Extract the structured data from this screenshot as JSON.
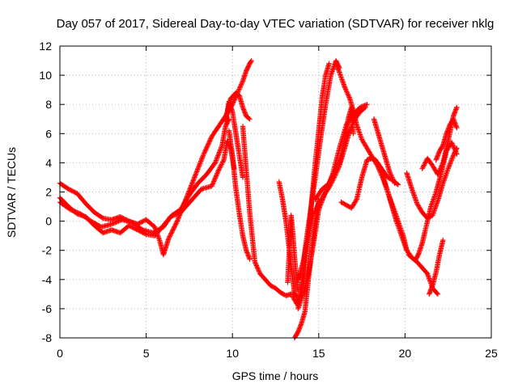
{
  "chart_data": {
    "type": "scatter",
    "title": "Day 057 of 2017, Sidereal Day-to-day VTEC variation (SDTVAR) for receiver nklg",
    "xlabel": "GPS time / hours",
    "ylabel": "SDTVAR / TECUs",
    "xlim": [
      0,
      25
    ],
    "ylim": [
      -8,
      12
    ],
    "xticks": [
      0,
      5,
      10,
      15,
      20,
      25
    ],
    "yticks": [
      -8,
      -6,
      -4,
      -2,
      0,
      2,
      4,
      6,
      8,
      10,
      12
    ],
    "grid": true,
    "marker": "+",
    "color": "#ff0000",
    "series": [
      {
        "x": [
          0.0,
          0.5,
          1.0,
          1.5,
          2.0,
          2.5,
          3.0,
          3.5,
          4.0,
          4.5,
          5.0,
          5.5,
          5.8,
          6.0,
          6.3,
          6.8,
          7.3,
          7.8,
          8.3,
          8.8,
          9.2,
          9.6,
          10.0,
          10.3,
          10.6,
          10.8,
          11.0,
          11.1
        ],
        "y": [
          2.6,
          2.2,
          1.9,
          1.2,
          0.6,
          0.2,
          0.1,
          0.3,
          0.0,
          -0.2,
          0.1,
          -0.4,
          -1.4,
          -2.3,
          -1.2,
          0.0,
          1.5,
          3.0,
          4.5,
          5.8,
          6.5,
          7.2,
          8.0,
          8.8,
          9.6,
          10.3,
          10.8,
          11.0
        ]
      },
      {
        "x": [
          0.0,
          0.5,
          1.0,
          1.5,
          2.0,
          2.5,
          3.0,
          3.5,
          4.0,
          4.5,
          5.0,
          5.5,
          6.0,
          6.5,
          7.0,
          7.5,
          8.0,
          8.5,
          9.0,
          9.4,
          9.6,
          9.8
        ],
        "y": [
          1.6,
          1.0,
          0.5,
          0.3,
          -0.3,
          -0.8,
          -0.6,
          -0.8,
          -0.3,
          -0.6,
          -0.9,
          -1.0,
          -0.3,
          0.4,
          0.8,
          1.8,
          2.6,
          3.2,
          4.0,
          5.2,
          6.5,
          7.0
        ]
      },
      {
        "x": [
          0.0,
          0.6,
          1.2,
          1.8,
          2.4,
          3.0,
          3.6,
          4.2,
          4.8,
          5.4,
          6.0,
          6.4,
          7.0,
          7.6,
          8.2,
          8.8,
          9.2,
          9.5,
          9.7,
          9.9,
          10.1
        ],
        "y": [
          1.3,
          0.8,
          0.5,
          0.0,
          -0.4,
          -0.2,
          0.1,
          -0.1,
          -0.6,
          -0.8,
          -0.4,
          0.3,
          0.6,
          1.4,
          2.2,
          2.4,
          3.5,
          4.2,
          5.5,
          5.0,
          3.6
        ]
      },
      {
        "x": [
          9.6,
          9.9,
          10.2,
          10.4,
          10.6,
          10.8,
          11.0
        ],
        "y": [
          7.0,
          8.4,
          8.8,
          8.6,
          7.8,
          7.2,
          7.0
        ]
      },
      {
        "x": [
          9.8,
          10.0,
          10.2,
          10.4,
          10.6,
          10.8,
          11.0
        ],
        "y": [
          6.2,
          4.5,
          2.2,
          0.5,
          -1.0,
          -2.0,
          -2.6
        ]
      },
      {
        "x": [
          9.6,
          9.8,
          10.0,
          10.2,
          10.4,
          10.6
        ],
        "y": [
          6.8,
          8.2,
          7.5,
          6.0,
          4.5,
          3.0
        ]
      },
      {
        "x": [
          10.6,
          10.8,
          11.0,
          11.3,
          11.6,
          11.9,
          12.2,
          12.5,
          12.8,
          13.1,
          13.4,
          13.6,
          13.8
        ],
        "y": [
          6.5,
          3.5,
          0.6,
          -2.8,
          -3.6,
          -4.0,
          -4.4,
          -4.6,
          -4.9,
          -5.1,
          -5.0,
          -5.0,
          -5.2
        ]
      },
      {
        "x": [
          12.7,
          12.9,
          13.1,
          13.3,
          13.4,
          13.5,
          13.6
        ],
        "y": [
          2.7,
          1.5,
          0.0,
          -2.0,
          -3.0,
          -4.0,
          -5.0
        ]
      },
      {
        "x": [
          13.2,
          13.4,
          13.5,
          13.6,
          13.7,
          13.8
        ],
        "y": [
          -4.2,
          0.4,
          -0.8,
          -2.5,
          -3.8,
          -4.8
        ]
      },
      {
        "x": [
          13.6,
          13.8,
          14.0,
          14.2,
          14.4,
          14.6,
          14.8,
          15.0
        ],
        "y": [
          -8.0,
          -7.6,
          -7.0,
          -6.2,
          -4.0,
          -2.0,
          0.0,
          1.5
        ]
      },
      {
        "x": [
          13.5,
          13.8,
          14.0,
          14.2,
          14.5,
          14.8,
          15.1,
          15.4,
          15.7,
          16.0,
          16.2
        ],
        "y": [
          -5.2,
          -5.8,
          -4.3,
          -2.0,
          0.5,
          3.0,
          5.6,
          8.0,
          10.0,
          11.0,
          10.5
        ]
      },
      {
        "x": [
          13.7,
          14.0,
          14.2,
          14.4,
          14.6,
          14.8,
          15.0,
          15.2,
          15.4,
          15.6
        ],
        "y": [
          -5.5,
          -5.0,
          -3.5,
          -1.0,
          1.5,
          4.0,
          6.2,
          8.5,
          10.0,
          10.8
        ]
      },
      {
        "x": [
          13.8,
          14.1,
          14.4,
          14.7,
          15.0,
          15.4,
          15.8,
          16.2,
          16.6,
          17.0,
          17.4,
          17.8
        ],
        "y": [
          -6.0,
          -5.0,
          -3.6,
          -1.5,
          0.8,
          2.0,
          3.2,
          5.0,
          6.6,
          7.3,
          7.8,
          8.0
        ]
      },
      {
        "x": [
          13.8,
          14.1,
          14.4,
          14.7,
          15.0,
          15.3,
          15.6,
          15.9,
          16.2,
          16.5,
          16.8,
          17.1,
          17.4,
          17.7
        ],
        "y": [
          -4.0,
          -2.8,
          -1.0,
          0.5,
          1.2,
          1.8,
          2.3,
          3.0,
          3.8,
          5.0,
          6.2,
          7.0,
          7.5,
          7.8
        ]
      },
      {
        "x": [
          14.8,
          15.2,
          15.6,
          15.9,
          16.2,
          16.5,
          16.7,
          16.9,
          17.0
        ],
        "y": [
          1.5,
          2.2,
          2.6,
          3.3,
          4.0,
          5.5,
          7.0,
          7.8,
          6.0
        ]
      },
      {
        "x": [
          16.0,
          16.2,
          16.5,
          16.8,
          17.0,
          17.2,
          17.5,
          17.8,
          18.1,
          18.4,
          18.7,
          19.0,
          19.3,
          19.6,
          19.9,
          20.1
        ],
        "y": [
          10.8,
          10.2,
          9.2,
          8.4,
          7.6,
          6.6,
          5.6,
          5.0,
          4.4,
          3.8,
          3.0,
          2.0,
          1.0,
          0.0,
          -1.0,
          -2.0
        ]
      },
      {
        "x": [
          16.3,
          16.6,
          16.9,
          17.2,
          17.5,
          17.8,
          18.1,
          18.4,
          18.7,
          19.0,
          19.3,
          19.6
        ],
        "y": [
          1.3,
          1.1,
          0.9,
          1.5,
          3.0,
          4.2,
          4.3,
          4.0,
          3.5,
          3.0,
          2.8,
          2.5
        ]
      },
      {
        "x": [
          18.0,
          18.3,
          18.6,
          18.9,
          19.2,
          19.5,
          19.8,
          20.1,
          20.4,
          20.7,
          21.0,
          21.3,
          21.6,
          21.9
        ],
        "y": [
          4.4,
          4.2,
          3.6,
          2.4,
          1.2,
          0.0,
          -1.0,
          -2.0,
          -2.5,
          -2.8,
          -3.2,
          -3.6,
          -4.6,
          -5.0
        ]
      },
      {
        "x": [
          18.2,
          18.5,
          18.8,
          19.1,
          19.4
        ],
        "y": [
          7.0,
          5.8,
          4.6,
          3.4,
          2.6
        ]
      },
      {
        "x": [
          20.1,
          20.4,
          20.7,
          21.0,
          21.3,
          21.6,
          21.9,
          22.2,
          22.5,
          22.8,
          23.0
        ],
        "y": [
          3.3,
          2.2,
          1.2,
          0.6,
          0.2,
          0.4,
          1.4,
          2.6,
          3.6,
          4.5,
          5.0
        ]
      },
      {
        "x": [
          20.2,
          20.4,
          20.6,
          20.8,
          21.0,
          21.2,
          21.5,
          21.8,
          22.1,
          22.4,
          22.7,
          23.0
        ],
        "y": [
          -2.3,
          -2.5,
          -2.7,
          -2.2,
          -1.5,
          -0.5,
          1.0,
          2.0,
          3.3,
          4.8,
          5.4,
          4.6
        ]
      },
      {
        "x": [
          21.0,
          21.3,
          21.6,
          21.9,
          22.2,
          22.5,
          22.8,
          23.0
        ],
        "y": [
          3.6,
          4.3,
          3.8,
          3.2,
          4.0,
          5.5,
          7.2,
          7.8
        ]
      },
      {
        "x": [
          21.8,
          22.0,
          22.2,
          22.4,
          22.6,
          22.8,
          23.0
        ],
        "y": [
          4.2,
          4.8,
          5.2,
          6.0,
          6.6,
          7.0,
          6.4
        ]
      },
      {
        "x": [
          21.4,
          21.6,
          21.8,
          22.0,
          22.2
        ],
        "y": [
          -5.0,
          -4.4,
          -3.5,
          -2.3,
          -1.3
        ]
      }
    ]
  }
}
